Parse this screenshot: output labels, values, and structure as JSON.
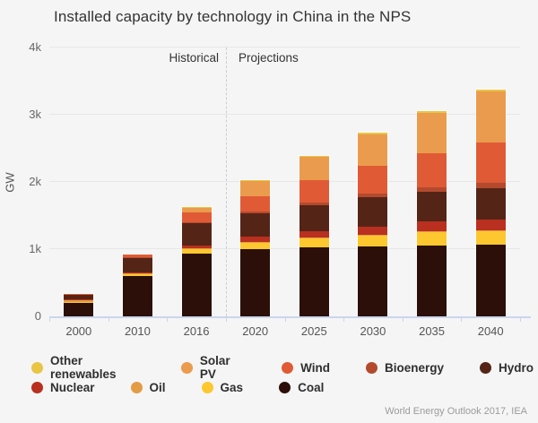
{
  "title": "Installed capacity by technology in China in the NPS",
  "footer": "World Energy Outlook 2017, IEA",
  "region_labels": {
    "historical": "Historical",
    "projections": "Projections"
  },
  "chart_data": {
    "type": "bar",
    "stacked": true,
    "title": "Installed capacity by technology in China in the NPS",
    "ylabel": "GW",
    "ylim": [
      0,
      4000
    ],
    "ytick_values": [
      0,
      1000,
      2000,
      3000,
      4000
    ],
    "ytick_labels": [
      "0",
      "1k",
      "2k",
      "3k",
      "4k"
    ],
    "grid": true,
    "categories": [
      "2000",
      "2010",
      "2016",
      "2020",
      "2025",
      "2030",
      "2035",
      "2040"
    ],
    "divider_after_category": "2016",
    "region_labels": {
      "left": "Historical",
      "right": "Projections"
    },
    "series": [
      {
        "name": "Coal",
        "color": "#2b0f08",
        "values": [
          210,
          600,
          940,
          1000,
          1030,
          1040,
          1055,
          1065
        ]
      },
      {
        "name": "Gas",
        "color": "#fdc72f",
        "values": [
          5,
          30,
          70,
          105,
          135,
          175,
          210,
          215
        ]
      },
      {
        "name": "Oil",
        "color": "#e39c45",
        "values": [
          30,
          15,
          10,
          8,
          6,
          5,
          4,
          3
        ]
      },
      {
        "name": "Nuclear",
        "color": "#b92f20",
        "values": [
          2,
          11,
          35,
          70,
          90,
          120,
          140,
          160
        ]
      },
      {
        "name": "Hydro",
        "color": "#542517",
        "values": [
          80,
          220,
          330,
          355,
          390,
          430,
          440,
          465
        ]
      },
      {
        "name": "Bioenergy",
        "color": "#b34a2e",
        "values": [
          1,
          4,
          12,
          25,
          40,
          55,
          65,
          75
        ]
      },
      {
        "name": "Wind",
        "color": "#e05b35",
        "values": [
          3,
          40,
          150,
          230,
          340,
          420,
          510,
          600
        ]
      },
      {
        "name": "Solar PV",
        "color": "#eb9b4d",
        "values": [
          0,
          1,
          80,
          220,
          340,
          460,
          600,
          760
        ]
      },
      {
        "name": "Other renewables",
        "color": "#e9c545",
        "values": [
          0,
          0,
          3,
          10,
          20,
          25,
          30,
          35
        ]
      }
    ],
    "legend_position": "bottom",
    "legend_rows": [
      [
        "Other renewables",
        "Solar PV",
        "Wind",
        "Bioenergy",
        "Hydro"
      ],
      [
        "Nuclear",
        "Oil",
        "Gas",
        "Coal"
      ]
    ],
    "units": "GW"
  }
}
